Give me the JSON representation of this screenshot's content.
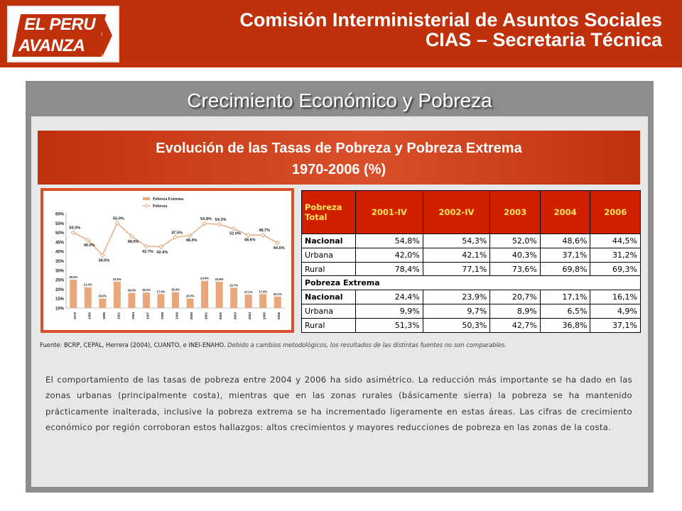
{
  "header": {
    "logo_line1": "EL PERU",
    "logo_line2": "AVANZA",
    "title_line1": "Comisión Interministerial de Asuntos Sociales",
    "title_line2": "CIAS – Secretaria Técnica",
    "bg_color": "#c0310b"
  },
  "panel": {
    "title": "Crecimiento Económico y Pobreza"
  },
  "subtitle": {
    "line1": "Evolución de las Tasas de Pobreza y Pobreza Extrema",
    "line2": "1970-2006 (%)"
  },
  "chart_data": {
    "type": "bar",
    "categories": [
      "1970",
      "1985",
      "1986",
      "1991",
      "1994",
      "1997",
      "1998",
      "1999",
      "2000",
      "2001",
      "2002",
      "2003",
      "2004",
      "2005",
      "2006"
    ],
    "series": [
      {
        "name": "Pobreza Extrema",
        "type": "bar",
        "color": "#e8a87c",
        "values": [
          25.0,
          21.0,
          15.0,
          24.0,
          18.0,
          18.2,
          17.4,
          18.4,
          15.0,
          24.4,
          23.9,
          20.7,
          17.1,
          17.4,
          16.1
        ],
        "labels": [
          "25.0%",
          "21.0%",
          "15.0%",
          "24.0%",
          "18.0%",
          "18.2%",
          "17.4%",
          "18.4%",
          "15.0%",
          "24.4%",
          "23.9%",
          "20.7%",
          "17.1%",
          "17.4%",
          "16.1%"
        ]
      },
      {
        "name": "Pobreza",
        "type": "line",
        "color": "#e8a87c",
        "values": [
          50.0,
          46.0,
          38.0,
          55.0,
          48.0,
          42.7,
          42.4,
          47.5,
          48.4,
          54.8,
          54.3,
          52.0,
          48.6,
          48.7,
          44.5
        ],
        "labels": [
          "50.0%",
          "46.0%",
          "38.0%",
          "55.0%",
          "48.0%",
          "42.7%",
          "42.4%",
          "47.5%",
          "48.4%",
          "54.8%",
          "54.3%",
          "52.0%",
          "48.6%",
          "48.7%",
          "44.5%"
        ]
      }
    ],
    "y_ticks": [
      "10%",
      "15%",
      "20%",
      "25%",
      "30%",
      "35%",
      "40%",
      "45%",
      "50%",
      "55%",
      "60%"
    ],
    "ylim": [
      10,
      60
    ],
    "legend": "top"
  },
  "table": {
    "header": [
      "Pobreza\nTotal",
      "2001-IV",
      "2002-IV",
      "2003",
      "2004",
      "2006"
    ],
    "sections": [
      {
        "rows": [
          {
            "label": "Nacional",
            "bold": true,
            "values": [
              "54,8%",
              "54,3%",
              "52,0%",
              "48,6%",
              "44,5%"
            ]
          },
          {
            "label": "Urbana",
            "bold": false,
            "values": [
              "42,0%",
              "42,1%",
              "40,3%",
              "37,1%",
              "31,2%"
            ]
          },
          {
            "label": "Rural",
            "bold": false,
            "values": [
              "78,4%",
              "77,1%",
              "73,6%",
              "69,8%",
              "69,3%"
            ]
          }
        ]
      },
      {
        "title": "Pobreza Extrema",
        "rows": [
          {
            "label": "Nacional",
            "bold": true,
            "values": [
              "24,4%",
              "23,9%",
              "20,7%",
              "17,1%",
              "16,1%"
            ]
          },
          {
            "label": "Urbana",
            "bold": false,
            "values": [
              "9,9%",
              "9,7%",
              "8,9%",
              "6,5%",
              "4,9%"
            ]
          },
          {
            "label": "Rural",
            "bold": false,
            "values": [
              "51,3%",
              "50,3%",
              "42,7%",
              "36,8%",
              "37,1%"
            ]
          }
        ]
      }
    ]
  },
  "source": {
    "text": "Fuente: BCRP, CEPAL, Herrera (2004), CUANTO, e INEI-ENAHO.",
    "italic": "Debido a cambios metodológicos, los resultados de las distintas fuentes no son comparables."
  },
  "body": {
    "paragraph": "El comportamiento de las tasas de pobreza  entre 2004 y 2006 ha sido asimétrico. La reducción más importante se ha dado en las zonas urbanas (principalmente costa), mientras que en las zonas rurales (básicamente sierra) la pobreza se ha mantenido prácticamente inalterada, inclusive la pobreza extrema se ha incrementado ligeramente en estas áreas. Las cifras de crecimiento económico por región corroboran estos hallazgos: altos crecimientos y mayores reducciones de pobreza en las zonas de la costa."
  }
}
